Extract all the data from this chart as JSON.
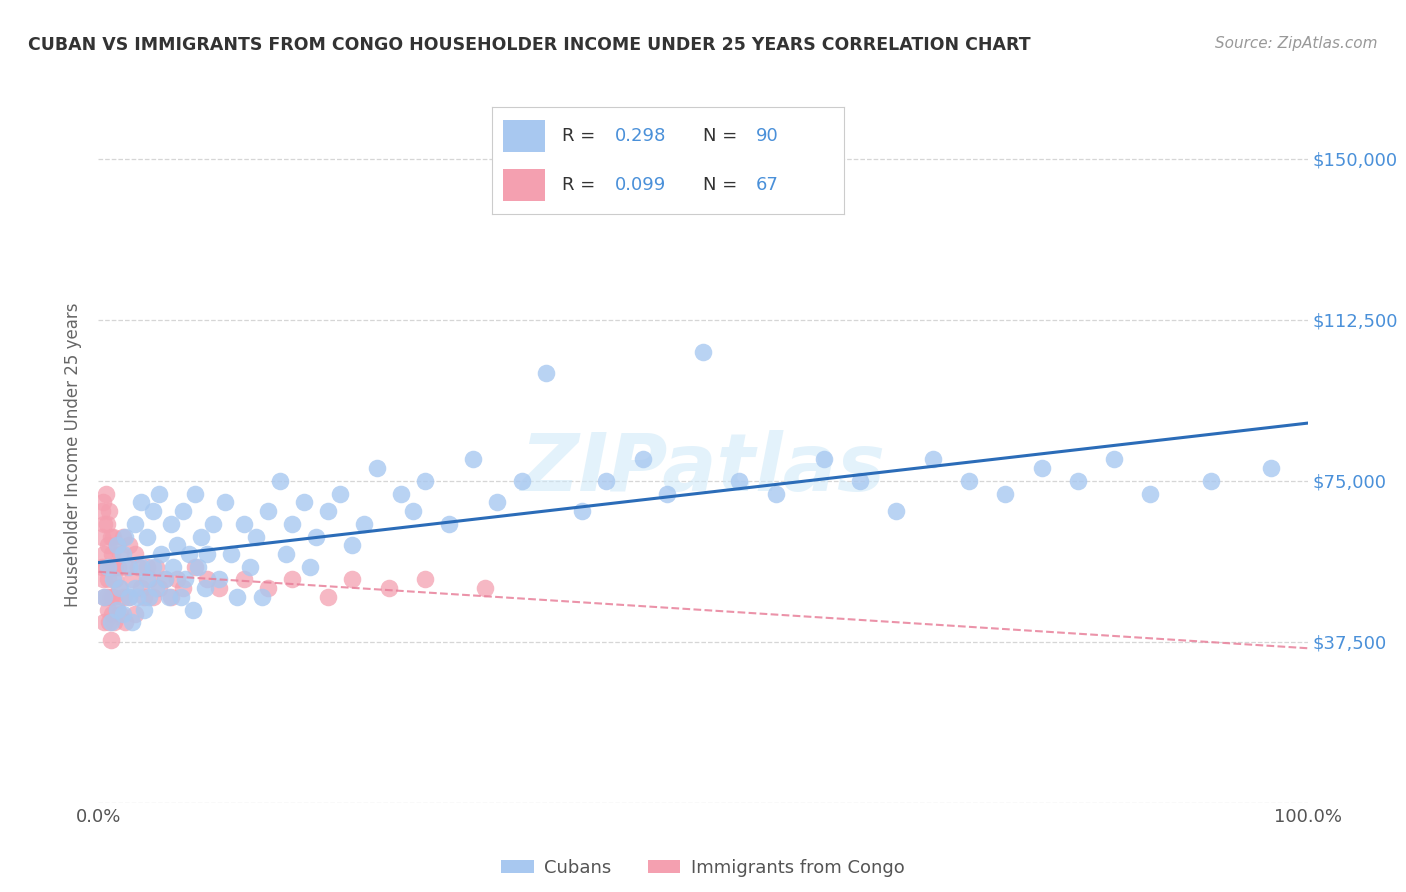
{
  "title": "CUBAN VS IMMIGRANTS FROM CONGO HOUSEHOLDER INCOME UNDER 25 YEARS CORRELATION CHART",
  "source": "Source: ZipAtlas.com",
  "ylabel": "Householder Income Under 25 years",
  "yticks": [
    0,
    37500,
    75000,
    112500,
    150000
  ],
  "ytick_labels_right": [
    "",
    "$37,500",
    "$75,000",
    "$112,500",
    "$150,000"
  ],
  "xlim": [
    0.0,
    1.0
  ],
  "ylim": [
    0,
    162000
  ],
  "legend_r1": "R = 0.298",
  "legend_n1": "N = 90",
  "legend_r2": "R = 0.099",
  "legend_n2": "N = 67",
  "color_cuban": "#a8c8f0",
  "color_congo": "#f4a0b0",
  "color_line_cuban": "#2b6cb8",
  "color_line_congo": "#e8809a",
  "watermark": "ZIPatlas",
  "background_color": "#ffffff",
  "grid_color": "#cccccc",
  "cuban_x": [
    0.005,
    0.008,
    0.01,
    0.012,
    0.015,
    0.015,
    0.018,
    0.02,
    0.02,
    0.022,
    0.025,
    0.025,
    0.028,
    0.03,
    0.03,
    0.032,
    0.035,
    0.035,
    0.038,
    0.04,
    0.04,
    0.042,
    0.045,
    0.045,
    0.048,
    0.05,
    0.052,
    0.055,
    0.058,
    0.06,
    0.062,
    0.065,
    0.068,
    0.07,
    0.072,
    0.075,
    0.078,
    0.08,
    0.082,
    0.085,
    0.088,
    0.09,
    0.095,
    0.1,
    0.105,
    0.11,
    0.115,
    0.12,
    0.125,
    0.13,
    0.135,
    0.14,
    0.15,
    0.155,
    0.16,
    0.17,
    0.175,
    0.18,
    0.19,
    0.2,
    0.21,
    0.22,
    0.23,
    0.25,
    0.26,
    0.27,
    0.29,
    0.31,
    0.33,
    0.35,
    0.37,
    0.4,
    0.42,
    0.45,
    0.47,
    0.5,
    0.53,
    0.56,
    0.6,
    0.63,
    0.66,
    0.69,
    0.72,
    0.75,
    0.78,
    0.81,
    0.84,
    0.87,
    0.92,
    0.97
  ],
  "cuban_y": [
    48000,
    55000,
    42000,
    52000,
    60000,
    45000,
    50000,
    58000,
    44000,
    62000,
    48000,
    55000,
    42000,
    65000,
    50000,
    48000,
    70000,
    55000,
    45000,
    62000,
    52000,
    48000,
    68000,
    55000,
    50000,
    72000,
    58000,
    52000,
    48000,
    65000,
    55000,
    60000,
    48000,
    68000,
    52000,
    58000,
    45000,
    72000,
    55000,
    62000,
    50000,
    58000,
    65000,
    52000,
    70000,
    58000,
    48000,
    65000,
    55000,
    62000,
    48000,
    68000,
    75000,
    58000,
    65000,
    70000,
    55000,
    62000,
    68000,
    72000,
    60000,
    65000,
    78000,
    72000,
    68000,
    75000,
    65000,
    80000,
    70000,
    75000,
    100000,
    68000,
    75000,
    80000,
    72000,
    105000,
    75000,
    72000,
    80000,
    75000,
    68000,
    80000,
    75000,
    72000,
    78000,
    75000,
    80000,
    72000,
    75000,
    78000
  ],
  "congo_x": [
    0.003,
    0.003,
    0.003,
    0.004,
    0.004,
    0.005,
    0.005,
    0.005,
    0.005,
    0.006,
    0.006,
    0.007,
    0.007,
    0.008,
    0.008,
    0.008,
    0.009,
    0.009,
    0.01,
    0.01,
    0.01,
    0.01,
    0.011,
    0.011,
    0.012,
    0.012,
    0.013,
    0.013,
    0.014,
    0.015,
    0.015,
    0.016,
    0.017,
    0.018,
    0.018,
    0.02,
    0.02,
    0.022,
    0.022,
    0.025,
    0.025,
    0.028,
    0.03,
    0.03,
    0.033,
    0.035,
    0.038,
    0.04,
    0.042,
    0.045,
    0.048,
    0.05,
    0.055,
    0.06,
    0.065,
    0.07,
    0.08,
    0.09,
    0.1,
    0.12,
    0.14,
    0.16,
    0.19,
    0.21,
    0.24,
    0.27,
    0.32
  ],
  "congo_y": [
    68000,
    62000,
    55000,
    70000,
    52000,
    65000,
    58000,
    48000,
    42000,
    72000,
    55000,
    65000,
    48000,
    60000,
    52000,
    45000,
    68000,
    42000,
    62000,
    55000,
    48000,
    38000,
    58000,
    44000,
    62000,
    48000,
    55000,
    42000,
    52000,
    60000,
    45000,
    55000,
    50000,
    58000,
    44000,
    62000,
    48000,
    55000,
    42000,
    60000,
    48000,
    52000,
    58000,
    44000,
    55000,
    50000,
    48000,
    55000,
    52000,
    48000,
    55000,
    50000,
    52000,
    48000,
    52000,
    50000,
    55000,
    52000,
    50000,
    52000,
    50000,
    52000,
    48000,
    52000,
    50000,
    52000,
    50000
  ]
}
